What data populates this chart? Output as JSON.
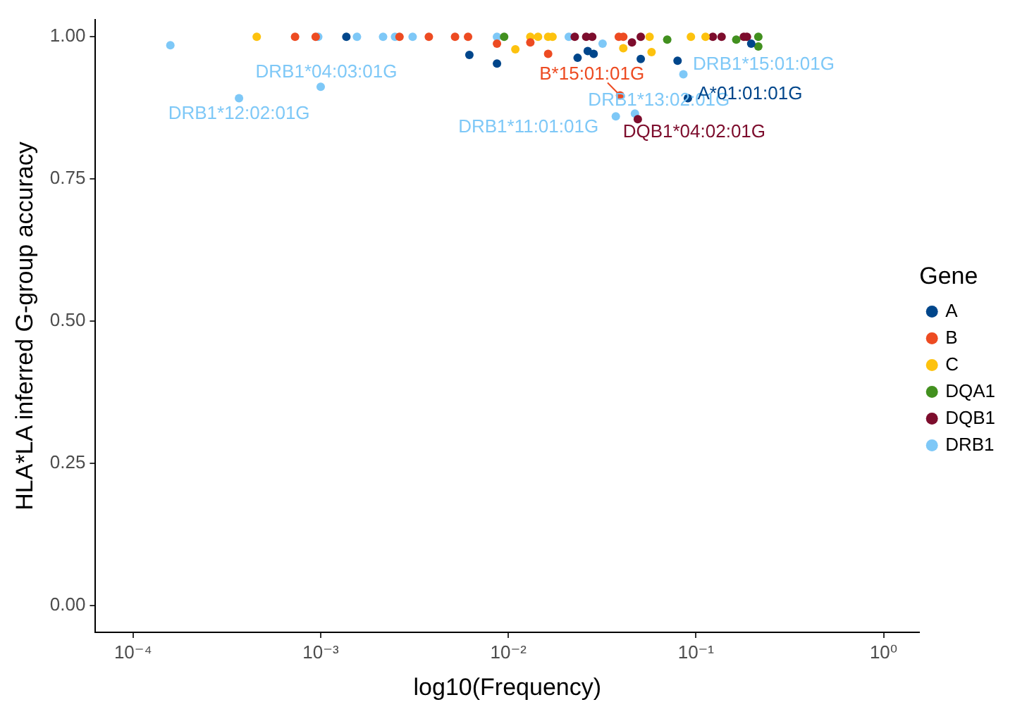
{
  "chart_data": {
    "type": "scatter",
    "xlabel": "log10(Frequency)",
    "ylabel": "HLA*LA inferred G-group accuracy",
    "legend_title": "Gene",
    "legend": "right",
    "log": "x",
    "grid": false,
    "marker": "circle",
    "xlim": [
      6.3e-05,
      1.55
    ],
    "ylim": [
      -0.047,
      1.03
    ],
    "xticks": [
      {
        "value": 0.0001,
        "label": "10⁻⁴"
      },
      {
        "value": 0.001,
        "label": "10⁻³"
      },
      {
        "value": 0.01,
        "label": "10⁻²"
      },
      {
        "value": 0.1,
        "label": "10⁻¹"
      },
      {
        "value": 1,
        "label": "10⁰"
      }
    ],
    "yticks": [
      {
        "value": 0,
        "label": "0.00"
      },
      {
        "value": 0.25,
        "label": "0.25"
      },
      {
        "value": 0.5,
        "label": "0.50"
      },
      {
        "value": 0.75,
        "label": "0.75"
      },
      {
        "value": 1,
        "label": "1.00"
      }
    ],
    "series": [
      {
        "name": "A",
        "color": "#00468b",
        "x": [
          0.00137,
          0.0062,
          0.0234,
          0.0265,
          0.0285,
          0.0508,
          0.0087,
          0.0798,
          0.197,
          0.0906
        ],
        "values": [
          1.0,
          0.968,
          0.963,
          0.975,
          0.97,
          0.961,
          0.953,
          0.958,
          0.988,
          0.892
        ]
      },
      {
        "name": "B",
        "color": "#ed4b22",
        "x": [
          0.00073,
          0.00094,
          0.00263,
          0.00377,
          0.0052,
          0.0061,
          0.0388,
          0.041,
          0.0087,
          0.0131,
          0.0163,
          0.0394
        ],
        "values": [
          1.0,
          1.0,
          1.0,
          1.0,
          1.0,
          1.0,
          1.0,
          1.0,
          0.988,
          0.99,
          0.97,
          0.897
        ]
      },
      {
        "name": "C",
        "color": "#fdc20e",
        "x": [
          0.000456,
          0.0131,
          0.0144,
          0.0163,
          0.0172,
          0.0566,
          0.094,
          0.1125,
          0.0109,
          0.041,
          0.058
        ],
        "values": [
          1.0,
          1.0,
          1.0,
          1.0,
          1.0,
          1.0,
          1.0,
          1.0,
          0.978,
          0.98,
          0.973
        ]
      },
      {
        "name": "DQA1",
        "color": "#42901f",
        "x": [
          0.0095,
          0.0703,
          0.164,
          0.215,
          0.215
        ],
        "values": [
          1.0,
          0.995,
          0.995,
          0.983,
          1.0
        ]
      },
      {
        "name": "DQB1",
        "color": "#7d0d2d",
        "x": [
          0.0226,
          0.026,
          0.028,
          0.0508,
          0.123,
          0.137,
          0.18,
          0.187,
          0.0456,
          0.049
        ],
        "values": [
          1.0,
          1.0,
          1.0,
          1.0,
          1.0,
          1.0,
          1.0,
          1.0,
          0.99,
          0.855
        ]
      },
      {
        "name": "DRB1",
        "color": "#7ec8f7",
        "x": [
          0.000158,
          0.000367,
          0.001,
          0.00097,
          0.00156,
          0.00215,
          0.00249,
          0.00309,
          0.0087,
          0.021,
          0.0318,
          0.0857,
          0.0473,
          0.0374
        ],
        "values": [
          0.985,
          0.892,
          0.912,
          1.0,
          1.0,
          1.0,
          1.0,
          1.0,
          1.0,
          1.0,
          0.988,
          0.934,
          0.865,
          0.86
        ]
      }
    ],
    "annotations": [
      {
        "text": "DRB1*12:02:01G",
        "x": 0.000367,
        "y": 0.892
      },
      {
        "text": "DRB1*04:03:01G",
        "x": 0.001,
        "y": 0.912
      },
      {
        "text": "B*15:01:01G",
        "x": 0.0394,
        "y": 0.897
      },
      {
        "text": "DRB1*13:02:01G",
        "x": 0.0473,
        "y": 0.865
      },
      {
        "text": "DQB1*04:02:01G",
        "x": 0.049,
        "y": 0.855
      },
      {
        "text": "DRB1*11:01:01G",
        "x": 0.0374,
        "y": 0.86
      },
      {
        "text": "A*01:01:01G",
        "x": 0.0906,
        "y": 0.892
      },
      {
        "text": "DRB1*15:01:01G",
        "x": 0.0857,
        "y": 0.934
      }
    ]
  }
}
